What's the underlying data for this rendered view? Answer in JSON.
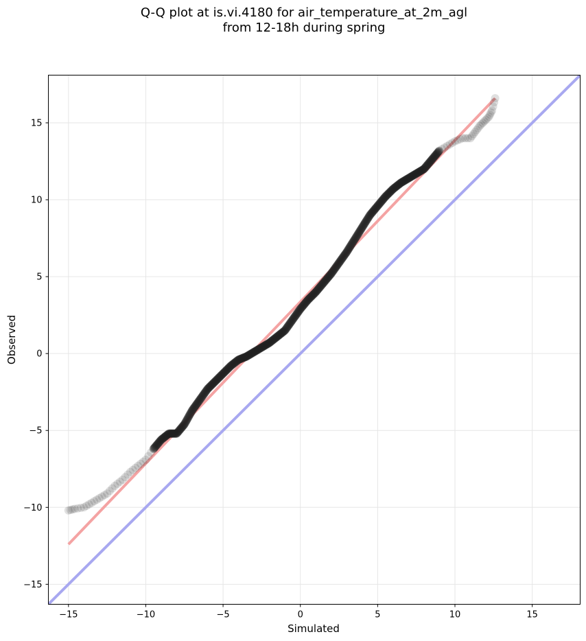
{
  "chart_data": {
    "type": "scatter",
    "title": "Q-Q plot at is.vi.4180 for air_temperature_at_2m_agl",
    "subtitle": "from 12-18h during spring",
    "xlabel": "Simulated",
    "ylabel": "Observed",
    "xlim": [
      -16.3,
      18.1
    ],
    "ylim": [
      -16.3,
      18.1
    ],
    "xticks": [
      -15,
      -10,
      -5,
      0,
      5,
      10,
      15
    ],
    "yticks": [
      -15,
      -10,
      -5,
      0,
      5,
      10,
      15
    ],
    "xtick_labels": [
      "−15",
      "−10",
      "−5",
      "0",
      "5",
      "10",
      "15"
    ],
    "ytick_labels": [
      "−15",
      "−10",
      "−5",
      "0",
      "5",
      "10",
      "15"
    ],
    "grid": true,
    "colors": {
      "points": "#222222",
      "fit_line": "#f4a3a3",
      "identity_line": "#a8a8f0"
    },
    "fit_line": {
      "x": [
        -15.0,
        12.6
      ],
      "y": [
        -12.4,
        16.6
      ]
    },
    "identity_line": {
      "x": [
        -16.3,
        18.1
      ],
      "y": [
        -16.3,
        18.1
      ]
    },
    "quantiles": {
      "x": [
        -15.0,
        -14.6,
        -14.0,
        -13.5,
        -13.0,
        -12.5,
        -12.0,
        -11.5,
        -11.0,
        -10.5,
        -10.0,
        -9.5,
        -9.0,
        -8.5,
        -8.0,
        -7.5,
        -7.0,
        -6.5,
        -6.0,
        -5.5,
        -5.0,
        -4.5,
        -4.0,
        -3.5,
        -3.0,
        -2.5,
        -2.0,
        -1.5,
        -1.0,
        -0.5,
        0.0,
        0.5,
        1.0,
        1.5,
        2.0,
        2.5,
        3.0,
        3.5,
        4.0,
        4.5,
        5.0,
        5.5,
        6.0,
        6.5,
        7.0,
        7.5,
        8.0,
        8.5,
        9.0,
        9.5,
        10.0,
        10.5,
        11.0,
        11.3,
        11.6,
        11.9,
        12.2,
        12.4,
        12.6
      ],
      "y": [
        -10.2,
        -10.1,
        -10.0,
        -9.7,
        -9.4,
        -9.1,
        -8.6,
        -8.2,
        -7.7,
        -7.3,
        -6.9,
        -6.2,
        -5.6,
        -5.2,
        -5.2,
        -4.6,
        -3.7,
        -3.0,
        -2.3,
        -1.8,
        -1.3,
        -0.8,
        -0.4,
        -0.2,
        0.1,
        0.4,
        0.7,
        1.1,
        1.5,
        2.2,
        2.9,
        3.5,
        4.0,
        4.6,
        5.2,
        5.9,
        6.6,
        7.4,
        8.2,
        9.0,
        9.6,
        10.2,
        10.7,
        11.1,
        11.4,
        11.7,
        12.0,
        12.6,
        13.2,
        13.5,
        13.8,
        14.0,
        14.0,
        14.4,
        14.8,
        15.1,
        15.4,
        15.8,
        16.6
      ]
    }
  }
}
